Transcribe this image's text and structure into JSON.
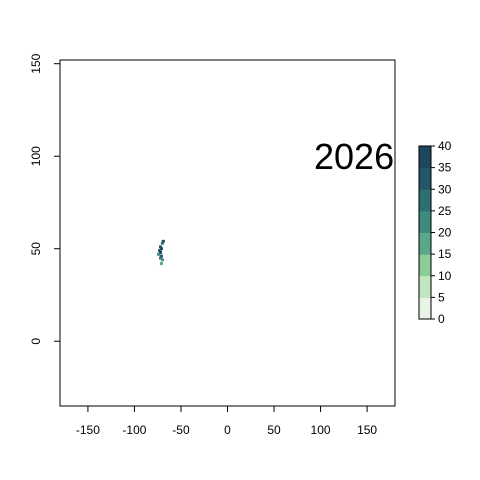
{
  "chart_data": {
    "type": "heatmap",
    "title": "",
    "xlabel": "",
    "ylabel": "",
    "xlim": [
      -180,
      180
    ],
    "ylim": [
      -35,
      152
    ],
    "x_ticks": [
      -150,
      -100,
      -50,
      0,
      50,
      100,
      150
    ],
    "y_ticks": [
      0,
      50,
      100,
      150
    ],
    "annotation": {
      "text": "2026",
      "x": 136,
      "y": 100
    },
    "colorbar": {
      "ticks": [
        0,
        5,
        10,
        15,
        20,
        25,
        30,
        35,
        40
      ],
      "range": [
        0,
        40
      ],
      "colors": [
        "#e8f5e6",
        "#c2e6c0",
        "#8ccc98",
        "#5aa88a",
        "#3d8a7e",
        "#2e6f73",
        "#24566a",
        "#1d4660"
      ]
    },
    "cells": [
      {
        "x": -69,
        "y": 54,
        "value": 35
      },
      {
        "x": -70,
        "y": 53,
        "value": 25
      },
      {
        "x": -72,
        "y": 51,
        "value": 32
      },
      {
        "x": -71,
        "y": 50,
        "value": 38
      },
      {
        "x": -73,
        "y": 49,
        "value": 30
      },
      {
        "x": -72,
        "y": 48,
        "value": 36
      },
      {
        "x": -74,
        "y": 47,
        "value": 22
      },
      {
        "x": -71,
        "y": 46,
        "value": 34
      },
      {
        "x": -72,
        "y": 45,
        "value": 28
      },
      {
        "x": -70,
        "y": 44,
        "value": 20
      },
      {
        "x": -71,
        "y": 42,
        "value": 18
      }
    ]
  }
}
